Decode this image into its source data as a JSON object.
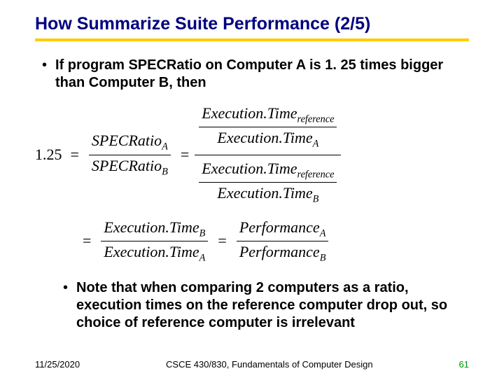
{
  "title": "How Summarize Suite Performance (2/5)",
  "bullet1": "If program SPECRatio on Computer A is 1. 25 times bigger than Computer B, then",
  "bullet2": "Note that when comparing 2 computers as a ratio, execution times on the reference computer drop out, so choice of reference computer is irrelevant",
  "eq": {
    "lhs": "1.25",
    "specA": "SPECRatio",
    "specAsub": "A",
    "specB": "SPECRatio",
    "specBsub": "B",
    "etRef": "Execution.Time",
    "etRefSub": "reference",
    "etA": "Execution.Time",
    "etAsub": "A",
    "etB": "Execution.Time",
    "etBsub": "B",
    "perfA": "Performance",
    "perfAsub": "A",
    "perfB": "Performance",
    "perfBsub": "B"
  },
  "footer": {
    "date": "11/25/2020",
    "course": "CSCE 430/830, Fundamentals of Computer Design",
    "page": "61"
  },
  "colors": {
    "title": "#000080",
    "underline": "#ffcc00",
    "pagenum": "#009900",
    "background": "#ffffff"
  }
}
